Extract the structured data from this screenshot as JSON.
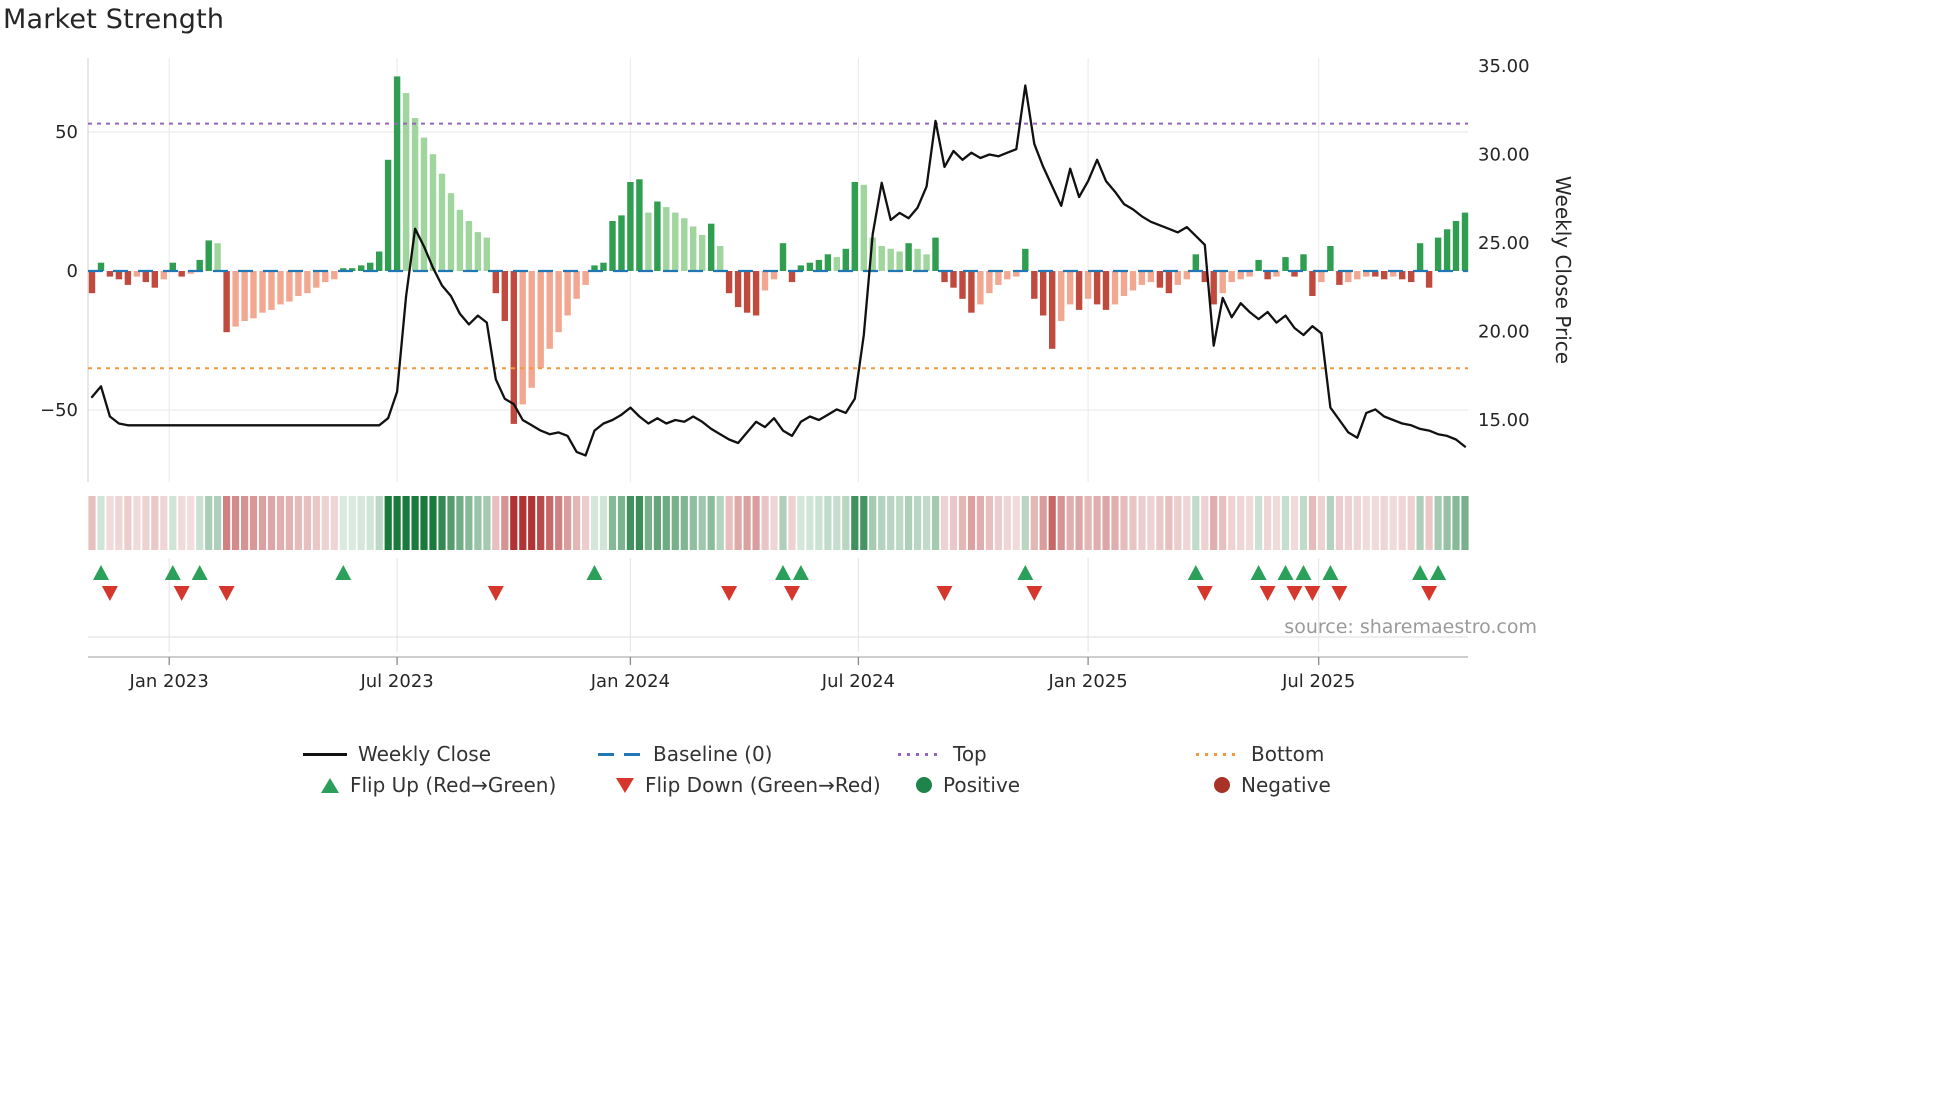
{
  "title": "Market Strength",
  "source": "source: sharemaestro.com",
  "axes": {
    "left_ticks": [
      {
        "value": 50,
        "label": "50"
      },
      {
        "value": 0,
        "label": "0"
      },
      {
        "value": -50,
        "label": "−50"
      }
    ],
    "right_ticks": [
      {
        "value": 35,
        "label": "35.00"
      },
      {
        "value": 30,
        "label": "30.00"
      },
      {
        "value": 25,
        "label": "25.00"
      },
      {
        "value": 20,
        "label": "20.00"
      },
      {
        "value": 15,
        "label": "15.00"
      }
    ],
    "right_axis_title": "Weekly Close Price"
  },
  "colors": {
    "bar_pos_strong": "#2f9e50",
    "bar_pos_light": "#a0d69d",
    "bar_neg_strong": "#c14a3f",
    "bar_neg_light": "#f2a791",
    "price_line": "#111111",
    "baseline": "#2077b4",
    "top": "#9467bd",
    "bottom": "#f0993f",
    "flip_up": "#2aa05a",
    "flip_down": "#d6372c",
    "positive_dot": "#1e8449",
    "negative_dot": "#a93226",
    "heat_pos": "#1a7a3c",
    "heat_neg": "#b23333",
    "grid": "#ececec",
    "spine": "#bdbdbd",
    "tick_label": "#262626",
    "source_text": "#9a9a9a"
  },
  "legend": [
    {
      "key": "weekly-close",
      "label": "Weekly Close",
      "marker": "line",
      "color": "#111111",
      "icon": "black-line-swatch"
    },
    {
      "key": "baseline",
      "label": "Baseline (0)",
      "marker": "dashes",
      "color": "#2077b4",
      "icon": "blue-dashed-line-swatch"
    },
    {
      "key": "top",
      "label": "Top",
      "marker": "dots-line",
      "color": "#9467bd",
      "icon": "purple-dotted-line-swatch"
    },
    {
      "key": "bottom",
      "label": "Bottom",
      "marker": "dots-line",
      "color": "#f0993f",
      "icon": "orange-dotted-line-swatch"
    },
    {
      "key": "flip-up",
      "label": "Flip Up (Red→Green)",
      "marker": "triangle-up",
      "color": "#2aa05a",
      "icon": "green-up-triangle-icon"
    },
    {
      "key": "flip-down",
      "label": "Flip Down (Green→Red)",
      "marker": "triangle-down",
      "color": "#d6372c",
      "icon": "red-down-triangle-icon"
    },
    {
      "key": "positive",
      "label": "Positive",
      "marker": "circle",
      "color": "#1e8449",
      "icon": "green-circle-icon"
    },
    {
      "key": "negative",
      "label": "Negative",
      "marker": "circle",
      "color": "#a93226",
      "icon": "dark-red-circle-icon"
    }
  ],
  "chart_data": {
    "type": "bar+line",
    "frequency": "weekly",
    "title": "Market Strength",
    "left_axis_series": "Market Strength oscillator (bars + heatmap strip + flip markers)",
    "right_axis_series": "Weekly Close price line",
    "left_ylim": [
      -75,
      75
    ],
    "right_ylim": [
      13.5,
      35.5
    ],
    "baseline": 0,
    "top_threshold": 53,
    "bottom_threshold": -35,
    "legend_position": "bottom",
    "grid": true,
    "x_ticks": [
      {
        "week": 8.6,
        "label": "Jan 2023"
      },
      {
        "week": 34.0,
        "label": "Jul 2023"
      },
      {
        "week": 60.0,
        "label": "Jan 2024"
      },
      {
        "week": 85.4,
        "label": "Jul 2024"
      },
      {
        "week": 111.0,
        "label": "Jan 2025"
      },
      {
        "week": 136.7,
        "label": "Jul 2025"
      }
    ],
    "strength": [
      -8,
      3,
      -2,
      -3,
      -5,
      -2,
      -4,
      -6,
      -3,
      3,
      -2,
      -1,
      4,
      11,
      10,
      -22,
      -20,
      -18,
      -17,
      -15,
      -14,
      -12,
      -11,
      -9,
      -8,
      -6,
      -4,
      -3,
      1,
      1,
      2,
      3,
      7,
      40,
      70,
      64,
      55,
      48,
      42,
      35,
      28,
      22,
      18,
      14,
      12,
      -8,
      -18,
      -55,
      -48,
      -42,
      -35,
      -28,
      -22,
      -16,
      -10,
      -5,
      2,
      3,
      18,
      20,
      32,
      33,
      21,
      25,
      23,
      21,
      19,
      16,
      13,
      17,
      9,
      -8,
      -13,
      -15,
      -16,
      -7,
      -3,
      10,
      -4,
      2,
      3,
      4,
      6,
      5,
      8,
      32,
      31,
      12,
      9,
      8,
      7,
      10,
      8,
      6,
      12,
      -4,
      -6,
      -10,
      -15,
      -12,
      -8,
      -5,
      -3,
      -2,
      8,
      -10,
      -16,
      -28,
      -18,
      -12,
      -14,
      -10,
      -12,
      -14,
      -12,
      -9,
      -7,
      -5,
      -4,
      -6,
      -8,
      -5,
      -3,
      6,
      -4,
      -12,
      -8,
      -4,
      -3,
      -2,
      4,
      -3,
      -2,
      5,
      -2,
      6,
      -9,
      -4,
      9,
      -5,
      -4,
      -3,
      -2,
      -2,
      -3,
      -2,
      -3,
      -4,
      10,
      -6,
      12,
      15,
      18,
      21
    ],
    "weekly_close": [
      16.3,
      16.9,
      15.2,
      14.8,
      14.7,
      14.7,
      14.7,
      14.7,
      14.7,
      14.7,
      14.7,
      14.7,
      14.7,
      14.7,
      14.7,
      14.7,
      14.7,
      14.7,
      14.7,
      14.7,
      14.7,
      14.7,
      14.7,
      14.7,
      14.7,
      14.7,
      14.7,
      14.7,
      14.7,
      14.7,
      14.7,
      14.7,
      14.7,
      15.1,
      16.6,
      22.0,
      25.8,
      24.8,
      23.6,
      22.6,
      22.0,
      21.0,
      20.4,
      20.9,
      20.5,
      17.3,
      16.2,
      15.9,
      15.0,
      14.7,
      14.4,
      14.2,
      14.3,
      14.1,
      13.2,
      13.0,
      14.4,
      14.8,
      15.0,
      15.3,
      15.7,
      15.2,
      14.8,
      15.1,
      14.8,
      15.0,
      14.9,
      15.2,
      14.9,
      14.5,
      14.2,
      13.9,
      13.7,
      14.3,
      14.9,
      14.6,
      15.1,
      14.4,
      14.1,
      14.9,
      15.2,
      15.0,
      15.3,
      15.6,
      15.4,
      16.2,
      19.8,
      25.5,
      28.4,
      26.3,
      26.7,
      26.4,
      27.0,
      28.2,
      31.9,
      29.3,
      30.2,
      29.7,
      30.1,
      29.8,
      30.0,
      29.9,
      30.1,
      30.3,
      33.9,
      30.6,
      29.3,
      28.2,
      27.1,
      29.2,
      27.6,
      28.5,
      29.7,
      28.5,
      27.9,
      27.2,
      26.9,
      26.5,
      26.2,
      26.0,
      25.8,
      25.6,
      25.9,
      25.4,
      24.9,
      19.2,
      21.9,
      20.8,
      21.6,
      21.1,
      20.7,
      21.1,
      20.5,
      20.9,
      20.2,
      19.8,
      20.3,
      19.9,
      15.7,
      15.0,
      14.3,
      14.0,
      15.4,
      15.6,
      15.2,
      15.0,
      14.8,
      14.7,
      14.5,
      14.4,
      14.2,
      14.1,
      13.9,
      13.5
    ],
    "flip_rule": "flip-up marker where strength crosses from negative to positive; flip-down marker where it crosses from positive to negative"
  }
}
